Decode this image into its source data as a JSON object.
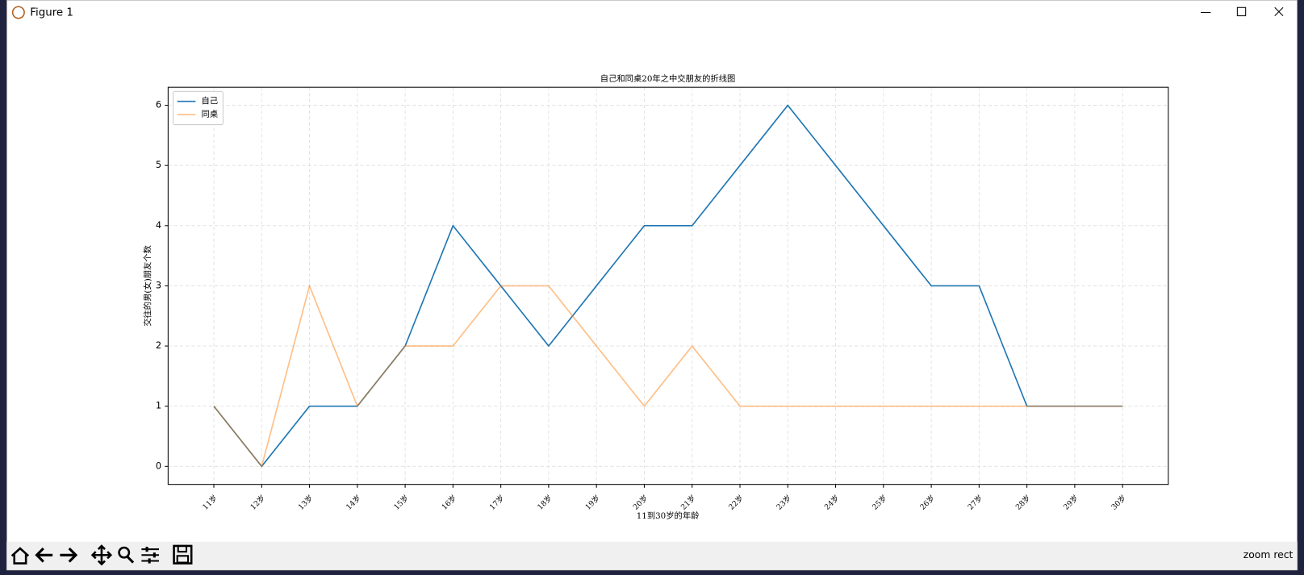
{
  "window": {
    "title": "Figure 1"
  },
  "toolbar": {
    "status": "zoom rect"
  },
  "chart_data": {
    "type": "line",
    "title": "自己和同桌20年之中交朋友的折线图",
    "x_label": "11到30岁的年龄",
    "y_label": "交往的男(女)朋友个数",
    "categories": [
      "11岁",
      "12岁",
      "13岁",
      "14岁",
      "15岁",
      "16岁",
      "17岁",
      "18岁",
      "19岁",
      "20岁",
      "21岁",
      "22岁",
      "23岁",
      "24岁",
      "25岁",
      "26岁",
      "27岁",
      "28岁",
      "29岁",
      "30岁"
    ],
    "series": [
      {
        "name": "自己",
        "color": "#1f77b4",
        "alpha": 1,
        "values": [
          1,
          0,
          1,
          1,
          2,
          4,
          3,
          2,
          3,
          4,
          4,
          5,
          6,
          5,
          4,
          3,
          3,
          1,
          1,
          1
        ]
      },
      {
        "name": "同桌",
        "color": "#ff7f0e",
        "alpha": 0.5,
        "values": [
          1,
          0,
          3,
          1,
          2,
          2,
          3,
          3,
          2,
          1,
          2,
          1,
          1,
          1,
          1,
          1,
          1,
          1,
          1,
          1
        ]
      }
    ],
    "ylim": [
      -0.3,
      6.3
    ],
    "yticks": [
      0,
      1,
      2,
      3,
      4,
      5,
      6
    ],
    "grid": true,
    "legend": "upper left"
  }
}
